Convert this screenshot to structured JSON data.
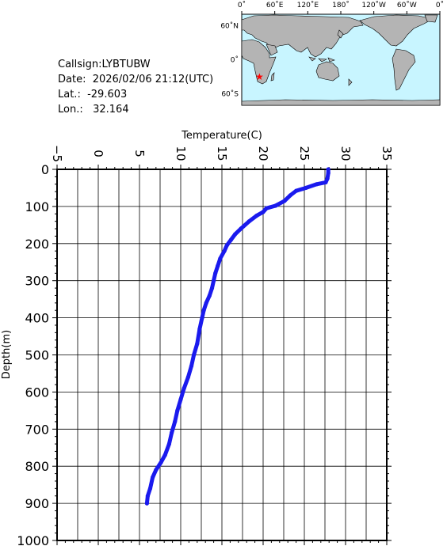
{
  "info": {
    "callsign": "Callsign:LYBTUBW",
    "date": "Date:  2026/02/06 21:12(UTC)",
    "lat": "Lat.:  -29.603",
    "lon": "Lon.:   32.164"
  },
  "map": {
    "top_labels": [
      "0˚",
      "60˚E",
      "120˚E",
      "180˚",
      "120˚W",
      "60˚W",
      "0˚"
    ],
    "left_labels": [
      "60˚N",
      "0˚",
      "60˚S"
    ],
    "marker": {
      "lat": -29.603,
      "lon": 32.164,
      "color": "#ff0000"
    },
    "ocean_color": "#c8f5ff",
    "land_color": "#b4b4b4"
  },
  "chart_data": {
    "type": "line",
    "xlabel": "Temperature(C)",
    "ylabel": "Depth(m)",
    "xlim": [
      -5,
      35
    ],
    "ylim": [
      0,
      1000
    ],
    "y_inverted": true,
    "x_axis_position": "top",
    "grid": true,
    "x_ticks": [
      "−5",
      "0",
      "5",
      "10",
      "15",
      "20",
      "25",
      "30",
      "35"
    ],
    "y_ticks": [
      "0",
      "100",
      "200",
      "300",
      "400",
      "500",
      "600",
      "700",
      "800",
      "900",
      "1000"
    ],
    "series": [
      {
        "color": "#1a1aee",
        "points": [
          [
            27.9,
            0
          ],
          [
            27.9,
            10
          ],
          [
            27.8,
            25
          ],
          [
            27.6,
            35
          ],
          [
            26.5,
            40
          ],
          [
            25.2,
            50
          ],
          [
            24.0,
            58
          ],
          [
            23.3,
            70
          ],
          [
            22.6,
            85
          ],
          [
            21.5,
            98
          ],
          [
            20.4,
            105
          ],
          [
            20.0,
            115
          ],
          [
            19.2,
            125
          ],
          [
            18.3,
            140
          ],
          [
            17.3,
            160
          ],
          [
            16.6,
            175
          ],
          [
            16.1,
            190
          ],
          [
            15.6,
            205
          ],
          [
            15.3,
            220
          ],
          [
            14.8,
            240
          ],
          [
            14.5,
            260
          ],
          [
            14.2,
            280
          ],
          [
            14.0,
            300
          ],
          [
            13.8,
            320
          ],
          [
            13.5,
            340
          ],
          [
            13.1,
            360
          ],
          [
            12.8,
            380
          ],
          [
            12.6,
            400
          ],
          [
            12.3,
            430
          ],
          [
            12.0,
            470
          ],
          [
            11.6,
            500
          ],
          [
            11.3,
            530
          ],
          [
            10.9,
            560
          ],
          [
            10.4,
            590
          ],
          [
            10.0,
            620
          ],
          [
            9.6,
            650
          ],
          [
            9.3,
            680
          ],
          [
            8.9,
            710
          ],
          [
            8.6,
            740
          ],
          [
            8.1,
            770
          ],
          [
            7.6,
            790
          ],
          [
            7.0,
            810
          ],
          [
            6.6,
            830
          ],
          [
            6.3,
            860
          ],
          [
            6.0,
            880
          ],
          [
            5.9,
            900
          ]
        ]
      }
    ]
  }
}
